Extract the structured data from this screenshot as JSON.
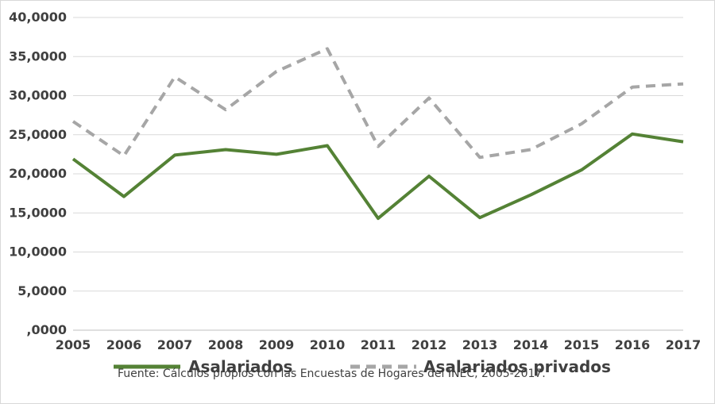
{
  "chart_data": {
    "type": "line",
    "title": "",
    "xlabel": "",
    "ylabel": "",
    "categories": [
      "2005",
      "2006",
      "2007",
      "2008",
      "2009",
      "2010",
      "2011",
      "2012",
      "2013",
      "2014",
      "2015",
      "2016",
      "2017"
    ],
    "ylim": [
      0,
      40000
    ],
    "yticks": [
      0,
      5000,
      10000,
      15000,
      20000,
      25000,
      30000,
      35000,
      40000
    ],
    "ytick_labels": [
      ",0000",
      "5,0000",
      "10,0000",
      "15,0000",
      "20,0000",
      "25,0000",
      "30,0000",
      "35,0000",
      "40,0000"
    ],
    "grid": true,
    "legend_position": "bottom",
    "series": [
      {
        "name": "Asalariados",
        "color": "#548235",
        "style": "solid",
        "values": [
          21900,
          17100,
          22400,
          23100,
          22500,
          23600,
          14300,
          19700,
          14400,
          17300,
          20500,
          25100,
          24100
        ]
      },
      {
        "name": "Asalariados privados",
        "color": "#a6a6a6",
        "style": "dashed",
        "values": [
          26700,
          22300,
          32400,
          28200,
          33100,
          36000,
          23500,
          29700,
          22100,
          23100,
          26400,
          31100,
          31500
        ]
      }
    ]
  },
  "source_note": "Fuente: Cálculos propios con las Encuestas de Hogares del INEC, 2005-2017."
}
